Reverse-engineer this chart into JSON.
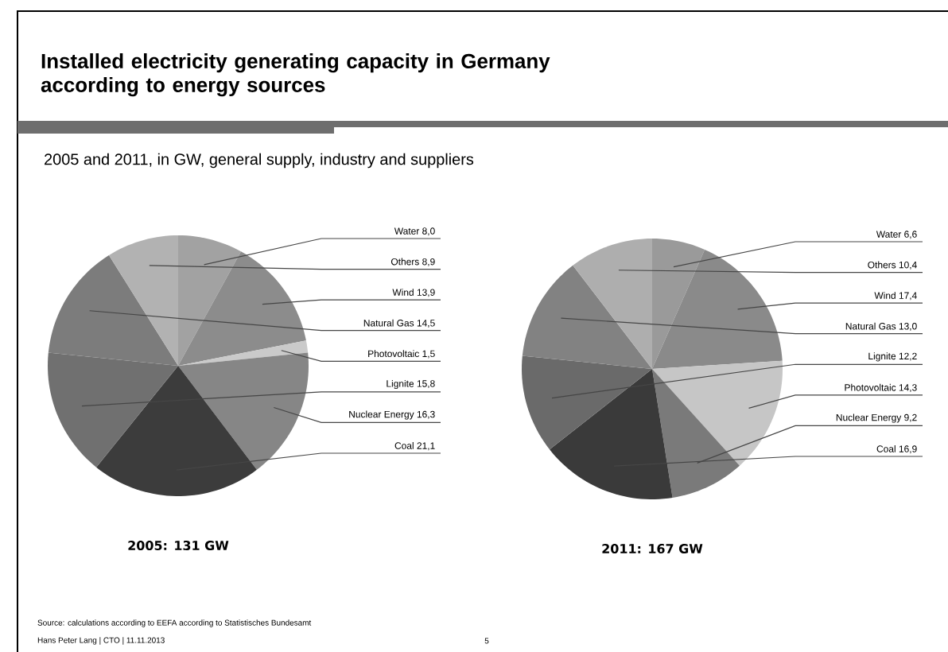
{
  "chart_data": [
    {
      "type": "pie",
      "title": "2005: 131 GW",
      "categories": [
        "Water",
        "Wind",
        "Photovoltaic",
        "Nuclear Energy",
        "Coal",
        "Lignite",
        "Natural Gas",
        "Others"
      ],
      "values": [
        8.0,
        13.9,
        1.5,
        16.3,
        21.1,
        15.8,
        14.5,
        8.9
      ],
      "value_labels": [
        "8,0",
        "13,9",
        "1,5",
        "16,3",
        "21,1",
        "15,8",
        "14,5",
        "8,9"
      ],
      "colors": [
        "#a2a2a2",
        "#8c8c8c",
        "#cacaca",
        "#868686",
        "#3c3c3c",
        "#707070",
        "#7c7c7c",
        "#b2b2b2"
      ],
      "annotations": [
        "Installed electricity generating capacity in Germany according to energy sources",
        "2005 and 2011, in GW, general supply, industry and suppliers",
        "Source: calculations according to EEFA according to Statistisches Bundesamt",
        "Hans Peter Lang | CTO | 11.11.2013",
        "5"
      ]
    },
    {
      "type": "pie",
      "title": "2011: 167 GW",
      "categories": [
        "Water",
        "Wind",
        "Photovoltaic",
        "Nuclear Energy",
        "Coal",
        "Lignite",
        "Natural Gas",
        "Others"
      ],
      "values": [
        6.6,
        17.4,
        14.3,
        9.2,
        16.9,
        12.2,
        13.0,
        10.4
      ],
      "value_labels": [
        "6,6",
        "17,4",
        "14,3",
        "9,2",
        "16,9",
        "12,2",
        "13,0",
        "10,4"
      ],
      "colors": [
        "#9a9a9a",
        "#8a8a8a",
        "#c6c6c6",
        "#7a7a7a",
        "#3a3a3a",
        "#6a6a6a",
        "#828282",
        "#aeaeae"
      ]
    }
  ]
}
